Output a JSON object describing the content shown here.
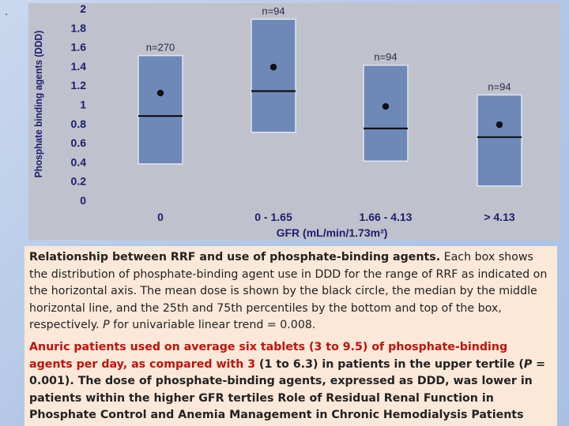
{
  "bullet": ".",
  "chart_data": {
    "type": "box",
    "ylabel": "Phosphate binding agents (DDD)",
    "xlabel": "GFR (mL/min/1.73m²)",
    "ylim": [
      0,
      2
    ],
    "yticks": [
      "0",
      "0.2",
      "0.4",
      "0.6",
      "0.8",
      "1",
      "1.2",
      "1.4",
      "1.6",
      "1.8",
      "2"
    ],
    "categories": [
      "0",
      "0 - 1.65",
      "1.66 - 4.13",
      "> 4.13"
    ],
    "n_labels": [
      "n=270",
      "n=94",
      "n=94",
      "n=94"
    ],
    "q1": [
      0.38,
      0.71,
      0.41,
      0.15
    ],
    "q3": [
      1.51,
      1.89,
      1.41,
      1.1
    ],
    "median": [
      0.88,
      1.14,
      0.75,
      0.66
    ],
    "mean": [
      1.12,
      1.39,
      0.98,
      0.79
    ],
    "grid": true,
    "colors": {
      "panel": "#bfc2cc",
      "box": "#6e88b8",
      "box_edge": "#dfe5f0",
      "text": "#1d1d6e"
    }
  },
  "caption": {
    "title": "Relationship between RRF and use of phosphate-binding agents.",
    "body_a": " Each box shows the distribution of phosphate-binding agent use in DDD for the range of RRF as indicated on the horizontal axis. The mean dose is shown by the black circle, the median by the middle horizontal line, and the 25th and 75th percentiles by the bottom and top of the box, respectively. ",
    "p_letter": "P",
    "body_b": " for univariable linear trend = 0.008.",
    "red_a": "Anuric patients used on average six tablets (3 to 9.5) of phosphate-binding agents per day, as compared with 3",
    "black_a": " (1 to 6.3) in patients in the upper tertile (",
    "p_letter2": "P",
    "black_b": " = 0.001). The dose of phosphate-binding agents, expressed as DDD, was lower in patients within the higher GFR tertiles Role of Residual Renal Function in Phosphate Control and Anemia Management in Chronic Hemodialysis Patients"
  }
}
